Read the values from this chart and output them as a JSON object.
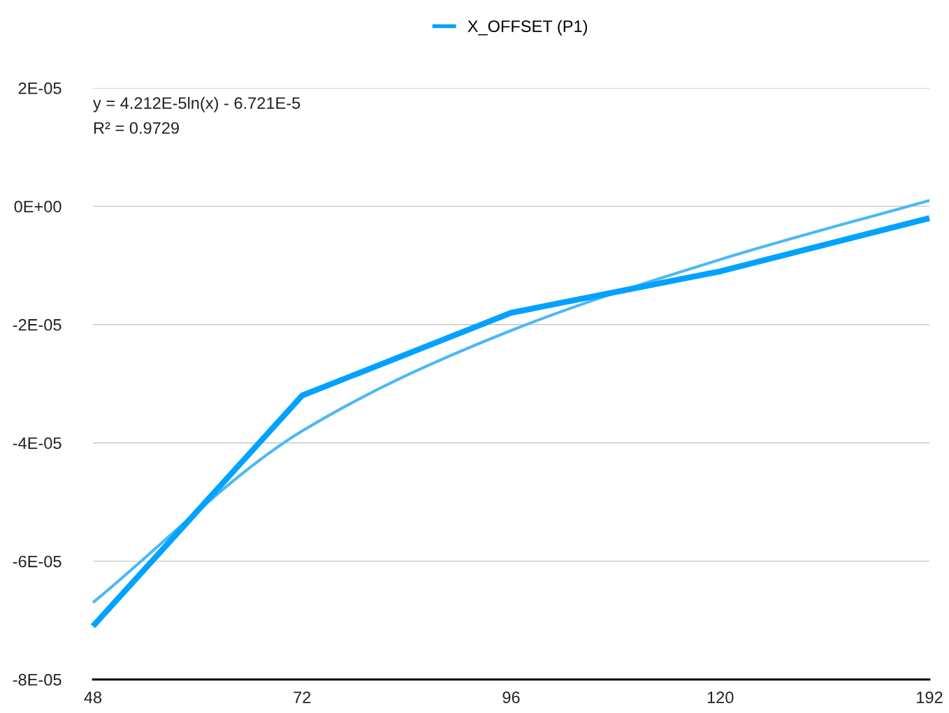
{
  "chart_data": {
    "type": "line",
    "categories": [
      "48",
      "72",
      "96",
      "120",
      "192"
    ],
    "ylim": [
      -8e-05,
      2e-05
    ],
    "yticks": [
      {
        "value": -8e-05,
        "label": "-8E-05"
      },
      {
        "value": -6e-05,
        "label": "-6E-05"
      },
      {
        "value": -4e-05,
        "label": "-4E-05"
      },
      {
        "value": -2e-05,
        "label": "-2E-05"
      },
      {
        "value": 0,
        "label": "0E+00"
      },
      {
        "value": 2e-05,
        "label": "2E-05"
      }
    ],
    "grid": "y",
    "legend": "top",
    "series": [
      {
        "name": "X_OFFSET (P1)",
        "color": "#00a2ff",
        "values": [
          -7.1e-05,
          -3.2e-05,
          -1.8e-05,
          -1.1e-05,
          -2e-06
        ]
      },
      {
        "type": "line",
        "color": "#4db8f5",
        "x": [
          "48",
          "72",
          "96",
          "120",
          "192"
        ],
        "values": [
          -6.7e-05,
          -3.8e-05,
          -2.1e-05,
          -9e-06,
          1e-06
        ]
      }
    ],
    "annotations": [
      "y = 4.212E-5ln(x) - 6.721E-5",
      "R² = 0.9729"
    ]
  }
}
